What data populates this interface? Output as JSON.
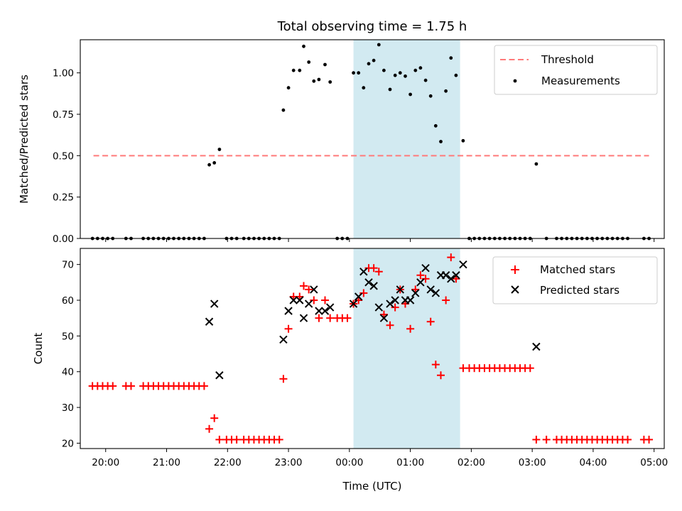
{
  "chart_data": [
    {
      "type": "scatter",
      "title": "Total observing time = 1.75 h",
      "xlabel": "",
      "ylabel": "Matched/Predicted stars",
      "xlim": [
        "19:35",
        "05:10"
      ],
      "ylim": [
        0,
        1.2
      ],
      "ytick_labels": [
        "0.00",
        "0.25",
        "0.50",
        "0.75",
        "1.00"
      ],
      "ytick_values": [
        0,
        0.25,
        0.5,
        0.75,
        1.0
      ],
      "grid": false,
      "legend_position": "top-right",
      "highlight_span": {
        "start": "00:04",
        "end": "01:49",
        "color": "#add8e6"
      },
      "threshold": {
        "name": "Threshold",
        "value": 0.5,
        "x_start": "19:48",
        "x_end": "04:55",
        "color": "#ff7a7a"
      },
      "series": [
        {
          "name": "Measurements",
          "color": "#000000",
          "points": [
            [
              "19:47",
              0
            ],
            [
              "19:52",
              0
            ],
            [
              "19:57",
              0
            ],
            [
              "20:02",
              0
            ],
            [
              "20:07",
              0
            ],
            [
              "20:20",
              0
            ],
            [
              "20:25",
              0
            ],
            [
              "20:37",
              0
            ],
            [
              "20:42",
              0
            ],
            [
              "20:47",
              0
            ],
            [
              "20:52",
              0
            ],
            [
              "20:57",
              0
            ],
            [
              "21:02",
              0
            ],
            [
              "21:07",
              0
            ],
            [
              "21:12",
              0
            ],
            [
              "21:17",
              0
            ],
            [
              "21:22",
              0
            ],
            [
              "21:27",
              0
            ],
            [
              "21:32",
              0
            ],
            [
              "21:37",
              0
            ],
            [
              "21:42",
              0.445
            ],
            [
              "21:47",
              0.457
            ],
            [
              "21:52",
              0.538
            ],
            [
              "21:59",
              0
            ],
            [
              "22:04",
              0
            ],
            [
              "22:09",
              0
            ],
            [
              "22:16",
              0
            ],
            [
              "22:21",
              0
            ],
            [
              "22:26",
              0
            ],
            [
              "22:31",
              0
            ],
            [
              "22:36",
              0
            ],
            [
              "22:41",
              0
            ],
            [
              "22:46",
              0
            ],
            [
              "22:51",
              0
            ],
            [
              "22:55",
              0.775
            ],
            [
              "23:00",
              0.91
            ],
            [
              "23:05",
              1.015
            ],
            [
              "23:11",
              1.015
            ],
            [
              "23:15",
              1.16
            ],
            [
              "23:20",
              1.065
            ],
            [
              "23:25",
              0.95
            ],
            [
              "23:30",
              0.96
            ],
            [
              "23:36",
              1.05
            ],
            [
              "23:41",
              0.945
            ],
            [
              "23:48",
              0
            ],
            [
              "23:53",
              0
            ],
            [
              "23:58",
              0
            ],
            [
              "00:04",
              1.0
            ],
            [
              "00:09",
              1.0
            ],
            [
              "00:14",
              0.91
            ],
            [
              "00:19",
              1.055
            ],
            [
              "00:24",
              1.075
            ],
            [
              "00:29",
              1.17
            ],
            [
              "00:34",
              1.015
            ],
            [
              "00:40",
              0.9
            ],
            [
              "00:45",
              0.985
            ],
            [
              "00:50",
              1.0
            ],
            [
              "00:55",
              0.98
            ],
            [
              "01:00",
              0.87
            ],
            [
              "01:05",
              1.015
            ],
            [
              "01:10",
              1.03
            ],
            [
              "01:15",
              0.955
            ],
            [
              "01:20",
              0.86
            ],
            [
              "01:25",
              0.68
            ],
            [
              "01:30",
              0.585
            ],
            [
              "01:35",
              0.89
            ],
            [
              "01:40",
              1.09
            ],
            [
              "01:45",
              0.985
            ],
            [
              "01:52",
              0.59
            ],
            [
              "01:58",
              0
            ],
            [
              "02:03",
              0
            ],
            [
              "02:08",
              0
            ],
            [
              "02:13",
              0
            ],
            [
              "02:18",
              0
            ],
            [
              "02:23",
              0
            ],
            [
              "02:28",
              0
            ],
            [
              "02:33",
              0
            ],
            [
              "02:38",
              0
            ],
            [
              "02:43",
              0
            ],
            [
              "02:48",
              0
            ],
            [
              "02:53",
              0
            ],
            [
              "02:58",
              0
            ],
            [
              "03:04",
              0.45
            ],
            [
              "03:14",
              0
            ],
            [
              "03:24",
              0
            ],
            [
              "03:29",
              0
            ],
            [
              "03:34",
              0
            ],
            [
              "03:39",
              0
            ],
            [
              "03:44",
              0
            ],
            [
              "03:49",
              0
            ],
            [
              "03:54",
              0
            ],
            [
              "03:59",
              0
            ],
            [
              "04:04",
              0
            ],
            [
              "04:09",
              0
            ],
            [
              "04:14",
              0
            ],
            [
              "04:19",
              0
            ],
            [
              "04:24",
              0
            ],
            [
              "04:29",
              0
            ],
            [
              "04:34",
              0
            ],
            [
              "04:50",
              0
            ],
            [
              "04:55",
              0
            ]
          ]
        }
      ]
    },
    {
      "type": "scatter",
      "title": "",
      "xlabel": "Time (UTC)",
      "ylabel": "Count",
      "xlim": [
        "19:35",
        "05:10"
      ],
      "ylim": [
        18.5,
        74.5
      ],
      "ytick_labels": [
        "20",
        "30",
        "40",
        "50",
        "60",
        "70"
      ],
      "ytick_values": [
        20,
        30,
        40,
        50,
        60,
        70
      ],
      "xtick_labels": [
        "20:00",
        "21:00",
        "22:00",
        "23:00",
        "00:00",
        "01:00",
        "02:00",
        "03:00",
        "04:00",
        "05:00"
      ],
      "xtick_values": [
        "20:00",
        "21:00",
        "22:00",
        "23:00",
        "00:00",
        "01:00",
        "02:00",
        "03:00",
        "04:00",
        "05:00"
      ],
      "grid": false,
      "legend_position": "top-right",
      "highlight_span": {
        "start": "00:04",
        "end": "01:49",
        "color": "#add8e6"
      },
      "series": [
        {
          "name": "Matched stars",
          "marker": "plus",
          "color": "#ff0000",
          "points": [
            [
              "19:47",
              36
            ],
            [
              "19:52",
              36
            ],
            [
              "19:57",
              36
            ],
            [
              "20:02",
              36
            ],
            [
              "20:07",
              36
            ],
            [
              "20:20",
              36
            ],
            [
              "20:25",
              36
            ],
            [
              "20:37",
              36
            ],
            [
              "20:42",
              36
            ],
            [
              "20:47",
              36
            ],
            [
              "20:52",
              36
            ],
            [
              "20:57",
              36
            ],
            [
              "21:02",
              36
            ],
            [
              "21:07",
              36
            ],
            [
              "21:12",
              36
            ],
            [
              "21:17",
              36
            ],
            [
              "21:22",
              36
            ],
            [
              "21:27",
              36
            ],
            [
              "21:32",
              36
            ],
            [
              "21:37",
              36
            ],
            [
              "21:42",
              24
            ],
            [
              "21:47",
              27
            ],
            [
              "21:52",
              21
            ],
            [
              "21:59",
              21
            ],
            [
              "22:04",
              21
            ],
            [
              "22:09",
              21
            ],
            [
              "22:16",
              21
            ],
            [
              "22:21",
              21
            ],
            [
              "22:26",
              21
            ],
            [
              "22:31",
              21
            ],
            [
              "22:36",
              21
            ],
            [
              "22:41",
              21
            ],
            [
              "22:46",
              21
            ],
            [
              "22:51",
              21
            ],
            [
              "22:55",
              38
            ],
            [
              "23:00",
              52
            ],
            [
              "23:05",
              61
            ],
            [
              "23:11",
              61
            ],
            [
              "23:15",
              64
            ],
            [
              "23:20",
              63
            ],
            [
              "23:25",
              60
            ],
            [
              "23:30",
              55
            ],
            [
              "23:36",
              60
            ],
            [
              "23:41",
              55
            ],
            [
              "23:48",
              55
            ],
            [
              "23:53",
              55
            ],
            [
              "23:58",
              55
            ],
            [
              "00:04",
              59
            ],
            [
              "00:09",
              60
            ],
            [
              "00:14",
              62
            ],
            [
              "00:19",
              69
            ],
            [
              "00:24",
              69
            ],
            [
              "00:29",
              68
            ],
            [
              "00:34",
              56
            ],
            [
              "00:40",
              53
            ],
            [
              "00:45",
              58
            ],
            [
              "00:50",
              63
            ],
            [
              "00:55",
              59
            ],
            [
              "01:00",
              52
            ],
            [
              "01:05",
              63
            ],
            [
              "01:10",
              67
            ],
            [
              "01:15",
              66
            ],
            [
              "01:20",
              54
            ],
            [
              "01:25",
              42
            ],
            [
              "01:30",
              39
            ],
            [
              "01:35",
              60
            ],
            [
              "01:40",
              72
            ],
            [
              "01:45",
              66
            ],
            [
              "01:52",
              41
            ],
            [
              "01:58",
              41
            ],
            [
              "02:03",
              41
            ],
            [
              "02:08",
              41
            ],
            [
              "02:13",
              41
            ],
            [
              "02:18",
              41
            ],
            [
              "02:23",
              41
            ],
            [
              "02:28",
              41
            ],
            [
              "02:33",
              41
            ],
            [
              "02:38",
              41
            ],
            [
              "02:43",
              41
            ],
            [
              "02:48",
              41
            ],
            [
              "02:53",
              41
            ],
            [
              "02:58",
              41
            ],
            [
              "03:04",
              21
            ],
            [
              "03:14",
              21
            ],
            [
              "03:24",
              21
            ],
            [
              "03:29",
              21
            ],
            [
              "03:34",
              21
            ],
            [
              "03:39",
              21
            ],
            [
              "03:44",
              21
            ],
            [
              "03:49",
              21
            ],
            [
              "03:54",
              21
            ],
            [
              "03:59",
              21
            ],
            [
              "04:04",
              21
            ],
            [
              "04:09",
              21
            ],
            [
              "04:14",
              21
            ],
            [
              "04:19",
              21
            ],
            [
              "04:24",
              21
            ],
            [
              "04:29",
              21
            ],
            [
              "04:34",
              21
            ],
            [
              "04:50",
              21
            ],
            [
              "04:55",
              21
            ]
          ]
        },
        {
          "name": "Predicted stars",
          "marker": "x",
          "color": "#000000",
          "points": [
            [
              "21:42",
              54
            ],
            [
              "21:47",
              59
            ],
            [
              "21:52",
              39
            ],
            [
              "22:55",
              49
            ],
            [
              "23:00",
              57
            ],
            [
              "23:05",
              60
            ],
            [
              "23:11",
              60
            ],
            [
              "23:15",
              55
            ],
            [
              "23:20",
              59
            ],
            [
              "23:25",
              63
            ],
            [
              "23:30",
              57
            ],
            [
              "23:36",
              57
            ],
            [
              "23:41",
              58
            ],
            [
              "00:04",
              59
            ],
            [
              "00:09",
              61
            ],
            [
              "00:14",
              68
            ],
            [
              "00:19",
              65
            ],
            [
              "00:24",
              64
            ],
            [
              "00:29",
              58
            ],
            [
              "00:34",
              55
            ],
            [
              "00:40",
              59
            ],
            [
              "00:45",
              60
            ],
            [
              "00:50",
              63
            ],
            [
              "00:55",
              60
            ],
            [
              "01:00",
              60
            ],
            [
              "01:05",
              62
            ],
            [
              "01:10",
              65
            ],
            [
              "01:15",
              69
            ],
            [
              "01:20",
              63
            ],
            [
              "01:25",
              62
            ],
            [
              "01:30",
              67
            ],
            [
              "01:35",
              67
            ],
            [
              "01:40",
              66
            ],
            [
              "01:45",
              67
            ],
            [
              "01:52",
              70
            ],
            [
              "03:04",
              47
            ]
          ]
        }
      ]
    }
  ]
}
